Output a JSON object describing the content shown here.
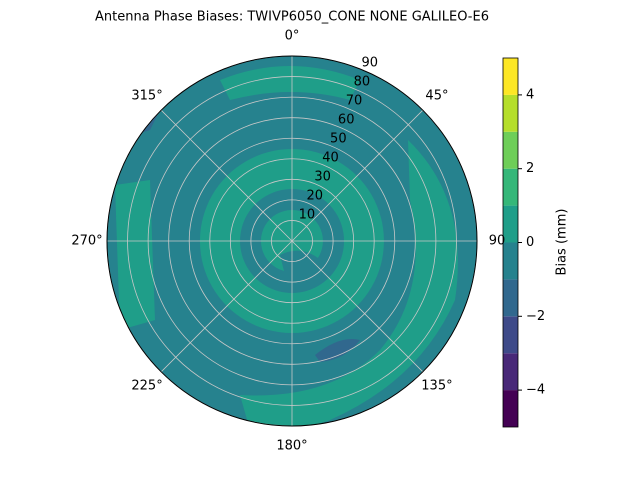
{
  "chart_data": {
    "type": "polar-contour",
    "title": "Antenna Phase Biases: TWIVP6050_CONE  NONE GALILEO-E6",
    "rlim": [
      0,
      90
    ],
    "rticks": [
      10,
      20,
      30,
      40,
      50,
      60,
      70,
      80,
      90
    ],
    "thetaticks": [
      {
        "value": 0,
        "label": "0°"
      },
      {
        "value": 45,
        "label": "45°"
      },
      90,
      {
        "value": 135,
        "label": "135°"
      },
      {
        "value": 180,
        "label": "180°"
      },
      {
        "value": 225,
        "label": "225°"
      },
      {
        "value": 270,
        "label": "270°"
      },
      {
        "value": 315,
        "label": "315°"
      }
    ],
    "grid": true,
    "colorbar": {
      "label": "Bias (mm)",
      "levels": [
        -5,
        -4,
        -3,
        -2,
        -1,
        0,
        1,
        2,
        3,
        4,
        5
      ],
      "colors": [
        "#440154",
        "#482878",
        "#3e4a89",
        "#31688e",
        "#26828e",
        "#1f9e89",
        "#35b779",
        "#6ece58",
        "#b5de2b",
        "#fde725"
      ],
      "ticks": [
        {
          "value": -4,
          "label": "−4"
        },
        {
          "value": -2,
          "label": "−2"
        },
        0,
        2,
        4
      ]
    }
  }
}
